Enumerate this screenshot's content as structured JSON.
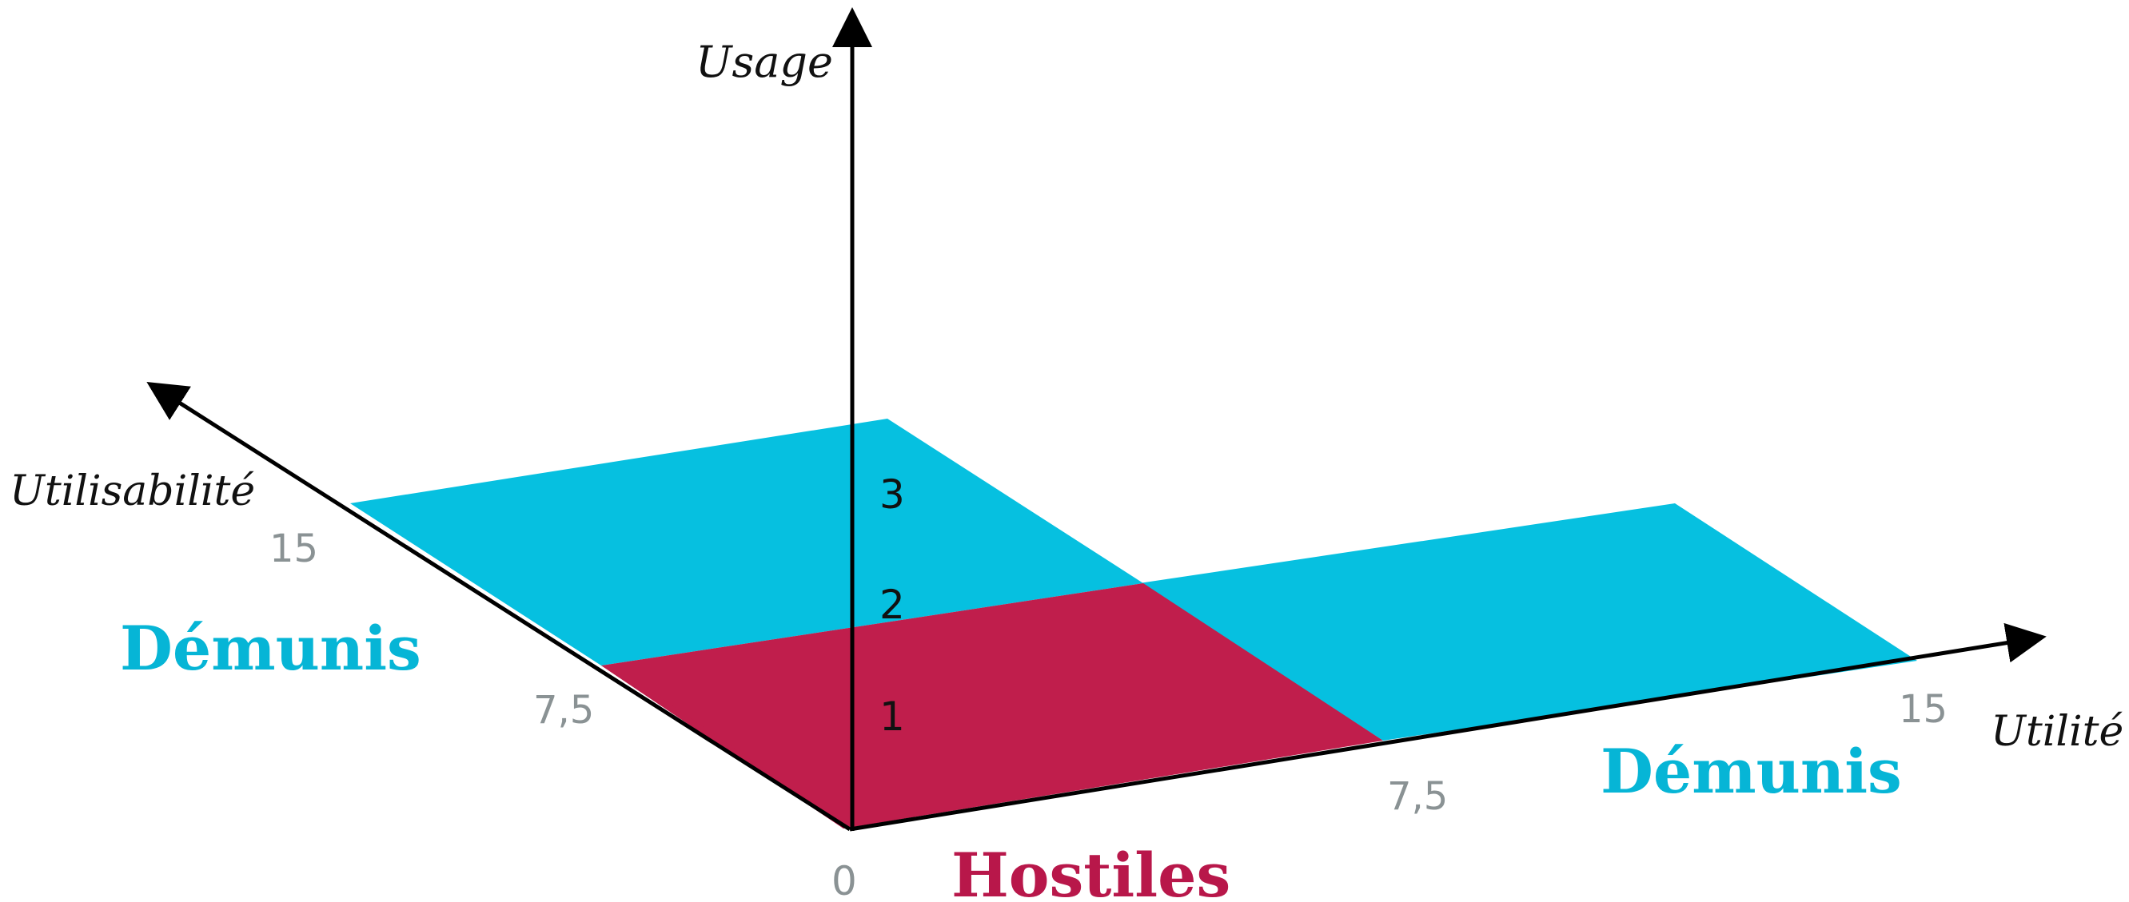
{
  "axes": {
    "usage": {
      "title": "Usage",
      "ticks": [
        "1",
        "2",
        "3"
      ]
    },
    "utilisabilite": {
      "title": "Utilisabilité",
      "ticks": [
        "7,5",
        "15"
      ]
    },
    "utilite": {
      "title": "Utilité",
      "ticks": [
        "7,5",
        "15"
      ]
    },
    "origin": "0"
  },
  "regions": {
    "demunis_left": "Démunis",
    "demunis_right": "Démunis",
    "hostiles": "Hostiles"
  },
  "colors": {
    "cyan": "#06c0e0",
    "crimson": "#c01e4c",
    "axis": "#000000"
  }
}
